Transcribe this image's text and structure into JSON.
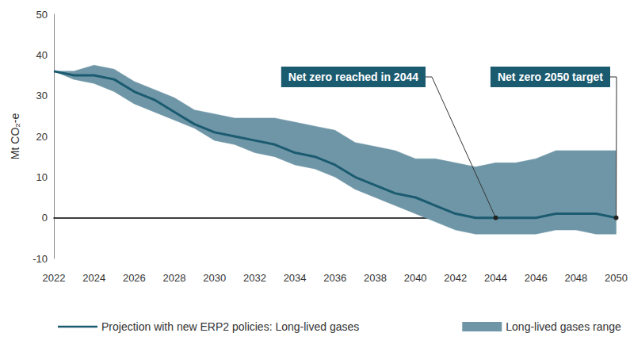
{
  "chart_data": {
    "type": "line",
    "y_label": "Mt CO₂-e",
    "x": [
      2022,
      2023,
      2024,
      2025,
      2026,
      2027,
      2028,
      2029,
      2030,
      2031,
      2032,
      2033,
      2034,
      2035,
      2036,
      2037,
      2038,
      2039,
      2040,
      2041,
      2042,
      2043,
      2044,
      2045,
      2046,
      2047,
      2048,
      2049,
      2050
    ],
    "series": [
      {
        "name": "Projection with new ERP2 policies: Long-lived gases",
        "type": "line",
        "color": "#1b5b70",
        "values": [
          36,
          35,
          35,
          34,
          31,
          29,
          26,
          23,
          21,
          20,
          19,
          18,
          16,
          15,
          13,
          10,
          8,
          6,
          5,
          3,
          1,
          0,
          0,
          0,
          0,
          1,
          1,
          1,
          0
        ]
      },
      {
        "name": "Long-lived gases range",
        "type": "area",
        "color": "#6f96a7",
        "lower": [
          36,
          34,
          33,
          31,
          28,
          26,
          24,
          22,
          19,
          18,
          16,
          15,
          13,
          12,
          10,
          7,
          5,
          3,
          1,
          -1,
          -3,
          -4,
          -4,
          -4,
          -4,
          -3,
          -3,
          -4,
          -4
        ],
        "upper": [
          36,
          36,
          37.5,
          36.5,
          33.5,
          31.5,
          29.5,
          26.5,
          25.5,
          24.5,
          24.5,
          24.5,
          23.5,
          22.5,
          21.5,
          18.5,
          17.5,
          16.5,
          14.5,
          14.5,
          13.5,
          12.5,
          13.5,
          13.5,
          14.5,
          16.5,
          16.5,
          16.5,
          16.5
        ]
      }
    ],
    "annotations": [
      {
        "text": "Net zero reached in 2044",
        "x": 2044,
        "y": 0
      },
      {
        "text": "Net zero 2050 target",
        "x": 2050,
        "y": 0
      }
    ],
    "xlim": [
      2022,
      2050
    ],
    "xticks": [
      2022,
      2024,
      2026,
      2028,
      2030,
      2032,
      2034,
      2036,
      2038,
      2040,
      2042,
      2044,
      2046,
      2048,
      2050
    ],
    "ylim": [
      -10,
      50
    ],
    "yticks": [
      -10,
      0,
      10,
      20,
      30,
      40,
      50
    ],
    "grid": false,
    "legend": "bottom"
  }
}
